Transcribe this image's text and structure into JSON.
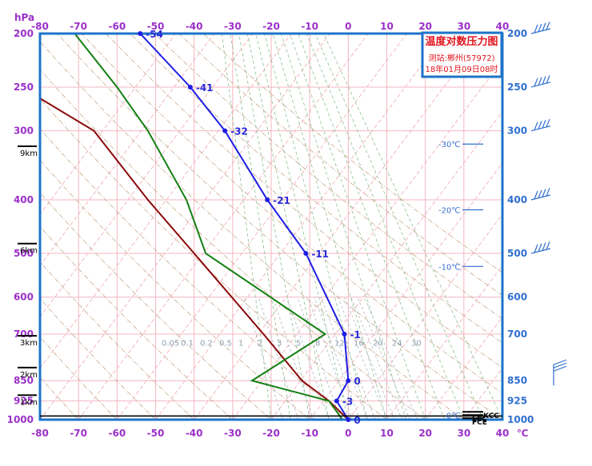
{
  "chart_data": {
    "type": "skew-t log-p sounding",
    "title": "温度对数压力图",
    "station": "测站:郴州(57972)",
    "time": "18年01月09日08时",
    "y_unit": "hPa",
    "x_unit": "℃",
    "xlim": [
      -80,
      40
    ],
    "ylim": [
      1000,
      200
    ],
    "x_ticks": [
      -80,
      -70,
      -60,
      -50,
      -40,
      -30,
      -20,
      -10,
      0,
      10,
      20,
      30,
      40
    ],
    "pressure_ticks": [
      200,
      250,
      300,
      400,
      500,
      600,
      700,
      850,
      925,
      1000
    ],
    "height_marks": [
      {
        "label": "9km",
        "p": 320
      },
      {
        "label": "6km",
        "p": 480
      },
      {
        "label": "3km",
        "p": 705
      },
      {
        "label": "2km",
        "p": 805
      },
      {
        "label": "1km",
        "p": 903
      }
    ],
    "temperature": {
      "name": "temperature",
      "color": "#1e1ee6",
      "points": [
        {
          "p": 1000,
          "t": 0,
          "label": "0"
        },
        {
          "p": 925,
          "t": -3,
          "label": "-3"
        },
        {
          "p": 850,
          "t": 0,
          "label": "0"
        },
        {
          "p": 700,
          "t": -1,
          "label": "-1"
        },
        {
          "p": 500,
          "t": -11,
          "label": "-11"
        },
        {
          "p": 400,
          "t": -21,
          "label": "-21"
        },
        {
          "p": 300,
          "t": -32,
          "label": "-32"
        },
        {
          "p": 250,
          "t": -41,
          "label": "-41"
        },
        {
          "p": 200,
          "t": -54,
          "label": "-54"
        }
      ]
    },
    "dewpoint": {
      "color": "#128012",
      "points": [
        {
          "p": 1000,
          "x": -1.5
        },
        {
          "p": 925,
          "x": -5
        },
        {
          "p": 850,
          "x": -25
        },
        {
          "p": 700,
          "x": -6
        },
        {
          "p": 500,
          "x": -37
        },
        {
          "p": 400,
          "x": -42
        },
        {
          "p": 300,
          "x": -52
        },
        {
          "p": 250,
          "x": -60
        },
        {
          "p": 200,
          "x": -71
        }
      ]
    },
    "parcel": {
      "color": "#8b0a0a",
      "points": [
        {
          "p": 1000,
          "x": 0
        },
        {
          "p": 925,
          "x": -5
        },
        {
          "p": 850,
          "x": -12
        },
        {
          "p": 700,
          "x": -22
        },
        {
          "p": 500,
          "x": -40
        },
        {
          "p": 400,
          "x": -52
        },
        {
          "p": 300,
          "x": -66
        },
        {
          "p": 262,
          "x": -80
        }
      ]
    },
    "isotherm_labels": [
      "-30℃",
      "-20℃",
      "-10℃",
      "0℃"
    ],
    "mixing_ratio_labels": [
      "0.05",
      "0.1",
      "0.2",
      "0.5",
      "1",
      "2",
      "3",
      "5",
      "8",
      "12",
      "16",
      "20",
      "24",
      "30"
    ],
    "levels": [
      "KCC",
      "LCC",
      "FCE"
    ]
  }
}
